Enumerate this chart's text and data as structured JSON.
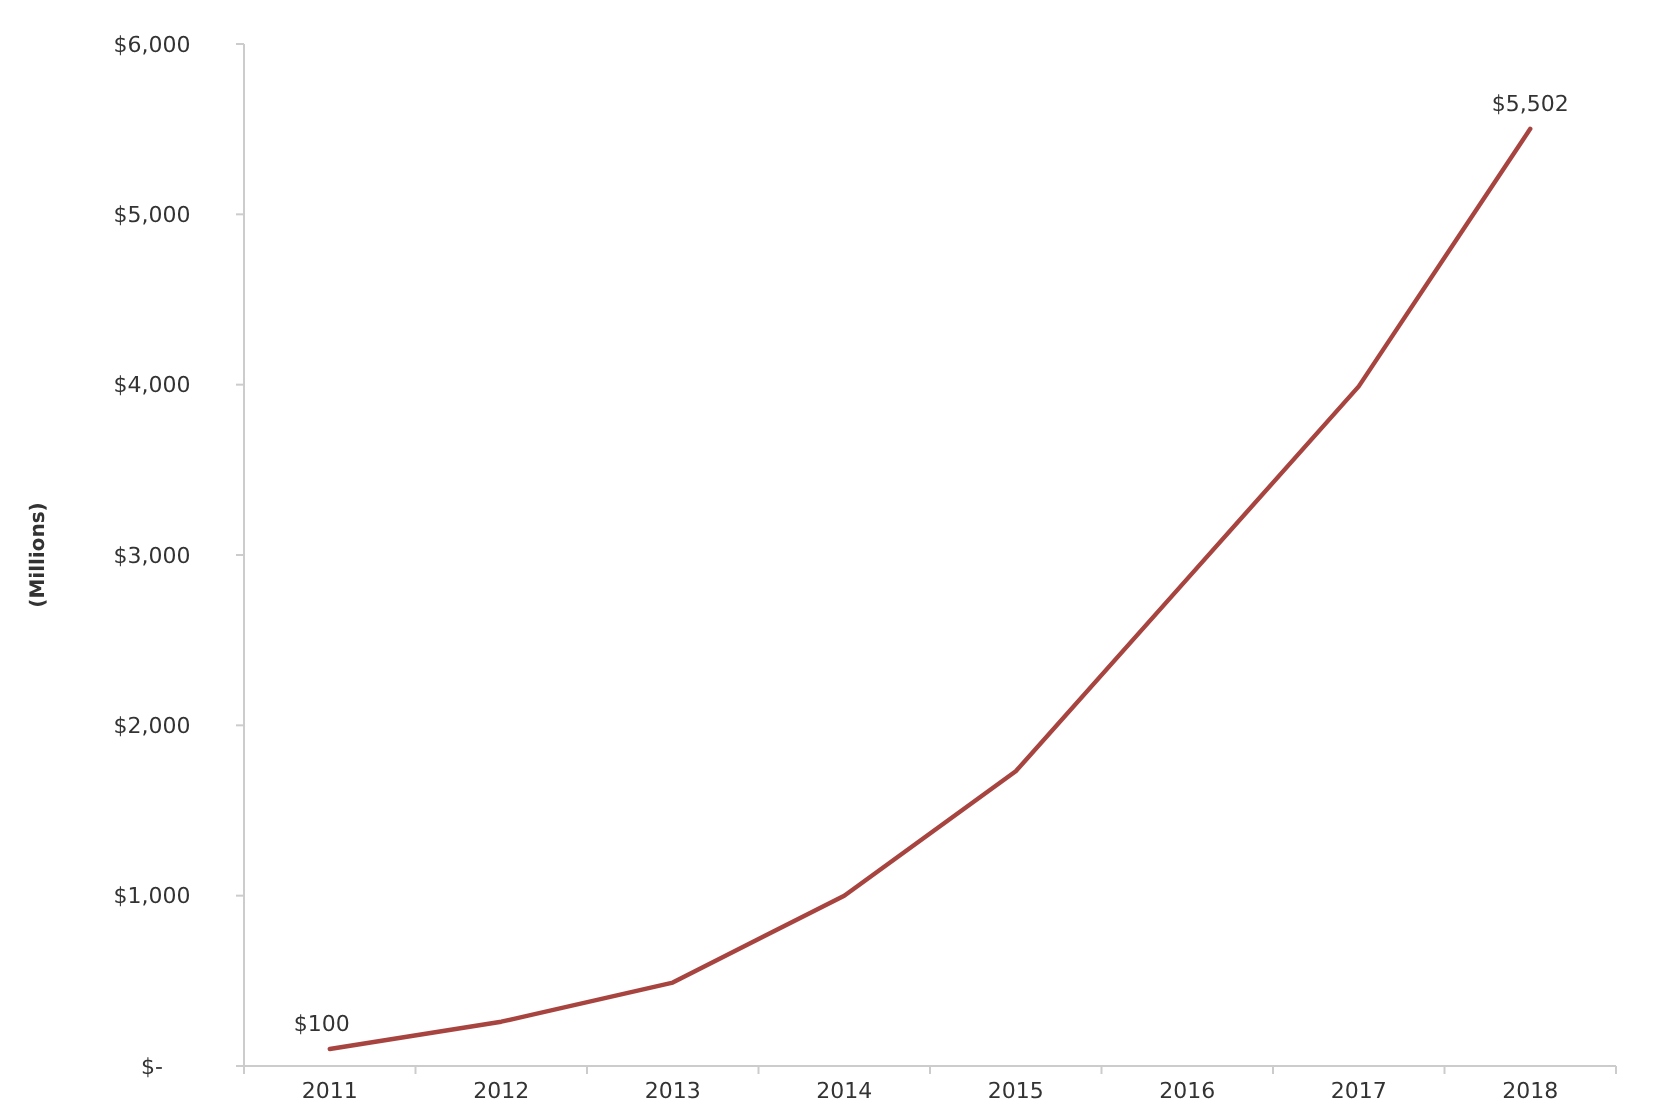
{
  "chart_data": {
    "type": "line",
    "ylabel": "(Millions)",
    "categories": [
      "2011",
      "2012",
      "2013",
      "2014",
      "2015",
      "2016",
      "2017",
      "2018"
    ],
    "values": [
      100,
      260,
      490,
      1000,
      1730,
      2860,
      3990,
      5502
    ],
    "value_labels": [
      "$100",
      null,
      null,
      null,
      null,
      null,
      null,
      "$5,502"
    ],
    "color": "#a8443f",
    "marker": "none",
    "grid": false,
    "ylim": [
      0,
      6000
    ],
    "yticks": [
      {
        "value": 0,
        "label": "$-"
      },
      {
        "value": 1000,
        "label": "$1,000"
      },
      {
        "value": 2000,
        "label": "$2,000"
      },
      {
        "value": 3000,
        "label": "$3,000"
      },
      {
        "value": 4000,
        "label": "$4,000"
      },
      {
        "value": 5000,
        "label": "$5,000"
      },
      {
        "value": 6000,
        "label": "$6,000"
      }
    ]
  }
}
